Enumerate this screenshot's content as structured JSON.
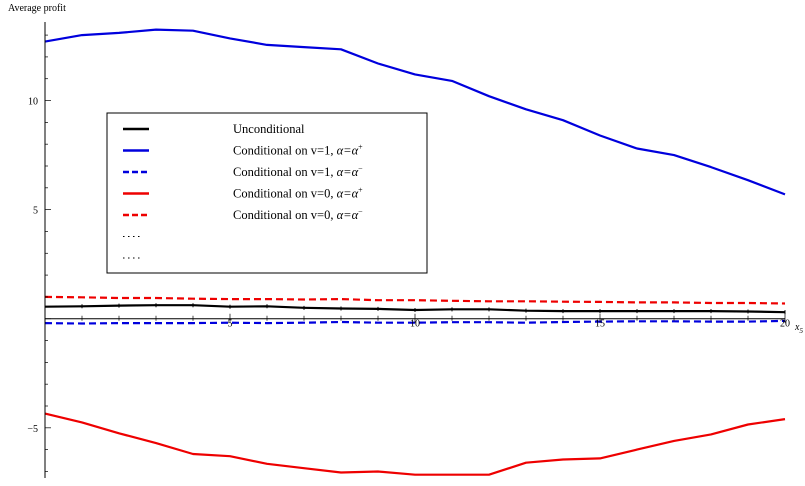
{
  "chart_data": {
    "type": "line",
    "title": "",
    "ylabel": "Average profit",
    "xlabel": "x",
    "xlabel_sub": "5",
    "xlim": [
      0,
      20
    ],
    "ylim": [
      -7.3,
      13.6
    ],
    "x_ticks": [
      5,
      10,
      15,
      20
    ],
    "y_ticks": [
      -5,
      5,
      10
    ],
    "grid": false,
    "legend_placement": "upper-left",
    "x": [
      0,
      1,
      2,
      3,
      4,
      5,
      6,
      7,
      8,
      9,
      10,
      11,
      12,
      13,
      14,
      15,
      16,
      17,
      18,
      19,
      20
    ],
    "series": [
      {
        "name": "Unconditional",
        "color": "#000000",
        "dash": "solid",
        "values": [
          0.55,
          0.57,
          0.6,
          0.62,
          0.62,
          0.55,
          0.57,
          0.5,
          0.47,
          0.45,
          0.4,
          0.43,
          0.43,
          0.37,
          0.35,
          0.35,
          0.35,
          0.35,
          0.35,
          0.33,
          0.3
        ]
      },
      {
        "name": "Conditional on v=1, α=α⁺",
        "label_main": "Conditional on v=1, ",
        "label_alpha": "α=α",
        "label_sup": "+",
        "color": "#0000dd",
        "dash": "solid",
        "values": [
          12.7,
          13.0,
          13.1,
          13.25,
          13.2,
          12.85,
          12.55,
          12.45,
          12.35,
          11.7,
          11.2,
          10.9,
          10.2,
          9.6,
          9.1,
          8.4,
          7.8,
          7.5,
          6.95,
          6.35,
          5.7
        ]
      },
      {
        "name": "Conditional on v=1, α=α⁻",
        "label_main": "Conditional on v=1, ",
        "label_alpha": "α=α",
        "label_sup": "−",
        "color": "#0000dd",
        "dash": "dashed",
        "values": [
          -0.2,
          -0.22,
          -0.2,
          -0.2,
          -0.2,
          -0.18,
          -0.2,
          -0.18,
          -0.15,
          -0.18,
          -0.18,
          -0.16,
          -0.16,
          -0.18,
          -0.15,
          -0.13,
          -0.12,
          -0.12,
          -0.13,
          -0.13,
          -0.1
        ]
      },
      {
        "name": "Conditional on v=0, α=α⁺",
        "label_main": "Conditional on v=0, ",
        "label_alpha": "α=α",
        "label_sup": "+",
        "color": "#ee0000",
        "dash": "solid",
        "values": [
          -4.35,
          -4.75,
          -5.25,
          -5.7,
          -6.2,
          -6.3,
          -6.65,
          -6.85,
          -7.05,
          -7.0,
          -7.15,
          -7.15,
          -7.15,
          -6.6,
          -6.45,
          -6.4,
          -6.0,
          -5.6,
          -5.3,
          -4.85,
          -4.6
        ]
      },
      {
        "name": "Conditional on v=0, α=α⁻",
        "label_main": "Conditional on v=0, ",
        "label_alpha": "α=α",
        "label_sup": "−",
        "color": "#ee0000",
        "dash": "dashed",
        "values": [
          1.0,
          0.98,
          0.95,
          0.95,
          0.92,
          0.9,
          0.9,
          0.88,
          0.9,
          0.85,
          0.85,
          0.82,
          0.8,
          0.8,
          0.78,
          0.77,
          0.75,
          0.75,
          0.72,
          0.72,
          0.7
        ]
      }
    ],
    "extra_legend_entries": [
      {
        "color": "#000000",
        "dash": "dotted"
      },
      {
        "color": "#000000",
        "dash": "dotted"
      }
    ]
  }
}
